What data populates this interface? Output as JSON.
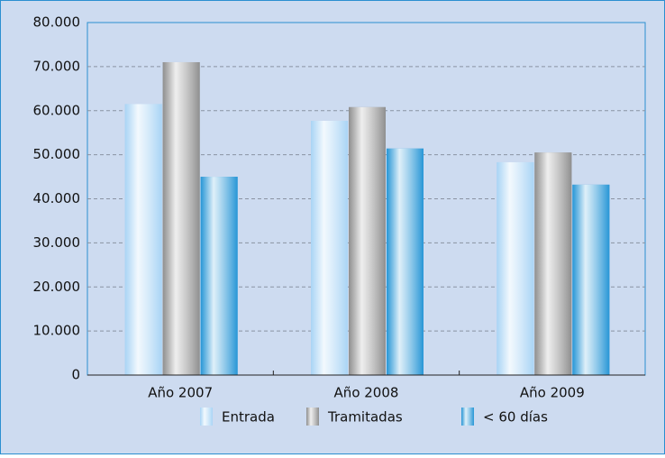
{
  "chart_data": {
    "type": "bar",
    "categories": [
      "Año 2007",
      "Año 2008",
      "Año 2009"
    ],
    "series": [
      {
        "name": "Entrada",
        "color": "#a9d4f5",
        "values": [
          61500,
          57700,
          48300
        ]
      },
      {
        "name": "Tramitadas",
        "color": "#8f8f8f",
        "values": [
          71000,
          60800,
          50500
        ]
      },
      {
        "name": "< 60 días",
        "color": "#2796d6",
        "values": [
          45000,
          51400,
          43200
        ]
      }
    ],
    "ylim": [
      0,
      80000
    ],
    "yticks": [
      0,
      {
        "value": 10000,
        "label": "10.000"
      },
      {
        "value": 20000,
        "label": "20.000"
      },
      {
        "value": 30000,
        "label": "30.000"
      },
      {
        "value": 40000,
        "label": "40.000"
      },
      {
        "value": 50000,
        "label": "50.000"
      },
      {
        "value": 60000,
        "label": "60.000"
      },
      {
        "value": 70000,
        "label": "70.000"
      },
      {
        "value": 80000,
        "label": "80.000"
      }
    ],
    "grid": true,
    "legend": "bottom"
  }
}
